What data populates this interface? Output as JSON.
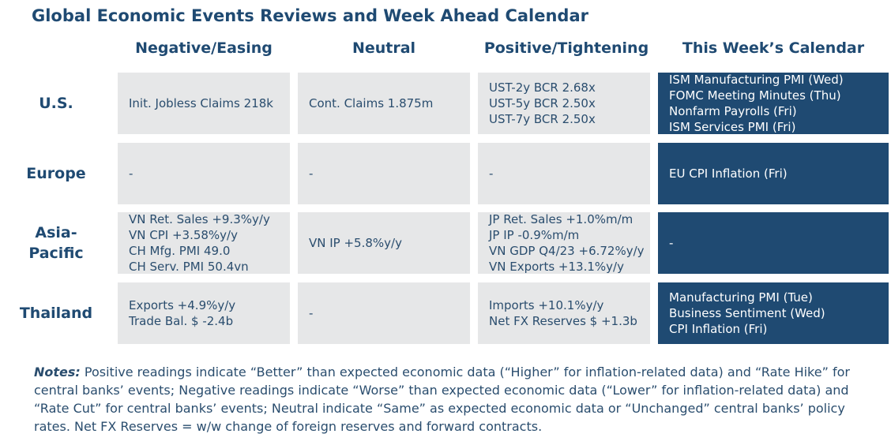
{
  "title": "Global Economic Events Reviews and Week Ahead Calendar",
  "columns": [
    "Negative/Easing",
    "Neutral",
    "Positive/Tightening",
    "This Week’s Calendar"
  ],
  "rows": [
    {
      "region": "U.S.",
      "negative": [
        "Init. Jobless Claims 218k"
      ],
      "neutral": [
        "Cont. Claims 1.875m"
      ],
      "positive": [
        "UST-2y BCR 2.68x",
        "UST-5y BCR 2.50x",
        "UST-7y BCR 2.50x"
      ],
      "calendar": [
        "ISM Manufacturing PMI (Wed)",
        "FOMC Meeting Minutes (Thu)",
        "Nonfarm Payrolls (Fri)",
        "ISM Services PMI (Fri)"
      ]
    },
    {
      "region": "Europe",
      "negative": [
        "-"
      ],
      "neutral": [
        "-"
      ],
      "positive": [
        "-"
      ],
      "calendar": [
        "EU CPI Inflation (Fri)"
      ]
    },
    {
      "region_lines": [
        "Asia-",
        "Pacific"
      ],
      "negative": [
        "VN Ret. Sales +9.3%y/y",
        "VN CPI +3.58%y/y",
        "CH Mfg. PMI 49.0",
        "CH Serv. PMI 50.4vn"
      ],
      "neutral": [
        "VN IP +5.8%y/y"
      ],
      "positive": [
        "JP Ret. Sales +1.0%m/m",
        "JP IP -0.9%m/m",
        "VN GDP Q4/23 +6.72%y/y",
        "VN Exports +13.1%y/y"
      ],
      "calendar": [
        "-"
      ]
    },
    {
      "region": "Thailand",
      "negative": [
        "Exports +4.9%y/y",
        "Trade Bal. $ -2.4b"
      ],
      "neutral": [
        "-"
      ],
      "positive": [
        "Imports +10.1%y/y",
        "Net FX Reserves $ +1.3b"
      ],
      "calendar": [
        "Manufacturing PMI (Tue)",
        "Business Sentiment (Wed)",
        "CPI Inflation (Fri)"
      ]
    }
  ],
  "notes": {
    "label": "Notes:",
    "text": " Positive readings indicate “Better” than expected economic data (“Higher” for inflation-related data) and “Rate Hike” for central banks’ events; Negative readings indicate “Worse” than expected economic data (“Lower” for inflation-related data) and “Rate Cut” for central banks’ events; Neutral indicate “Same” as expected economic data or “Unchanged” central banks’ policy rates. Net FX Reserves = w/w change of foreign reserves and forward contracts."
  },
  "colors": {
    "heading": "#1f4a72",
    "cell_bg": "#e6e7e8",
    "calendar_bg": "#1f4a72",
    "text": "#2a4d6e"
  }
}
